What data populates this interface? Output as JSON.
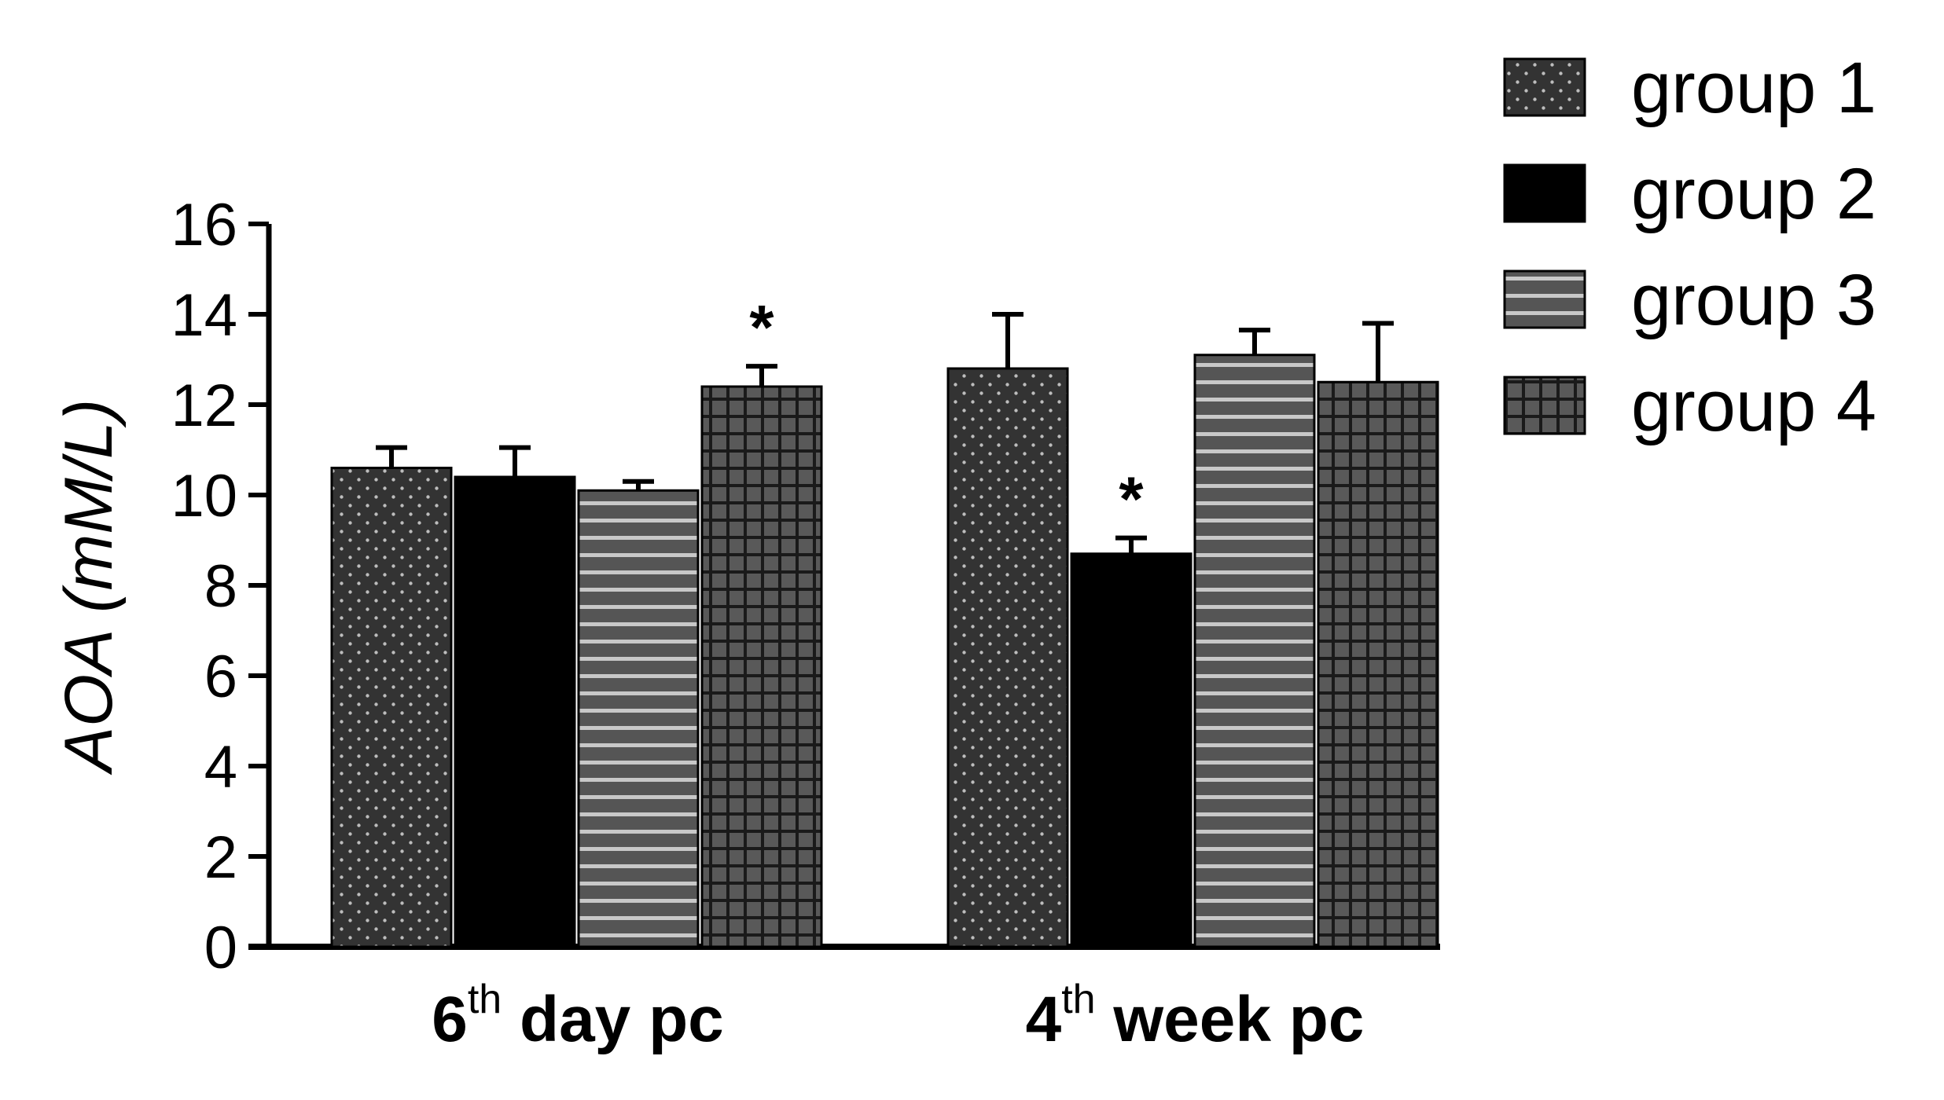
{
  "chart_data": {
    "type": "bar",
    "title": "",
    "xlabel": "",
    "ylabel": "AOA (mM/L)",
    "ylim": [
      0,
      16
    ],
    "yticks": [
      "0",
      "2",
      "4",
      "6",
      "8",
      "10",
      "12",
      "14",
      "16"
    ],
    "categories": [
      {
        "main": "6",
        "sup": "th",
        "rest": " day pc"
      },
      {
        "main": "4",
        "sup": "th",
        "rest": " week pc"
      }
    ],
    "series": [
      {
        "name": "group 1",
        "pattern": "dots",
        "values": [
          10.6,
          12.8
        ],
        "errors": [
          0.45,
          1.2
        ],
        "significant": [
          "",
          ""
        ]
      },
      {
        "name": "group 2",
        "pattern": "solid",
        "values": [
          10.4,
          8.7
        ],
        "errors": [
          0.65,
          0.35
        ],
        "significant": [
          "",
          "*"
        ]
      },
      {
        "name": "group 3",
        "pattern": "hstripes",
        "values": [
          10.1,
          13.1
        ],
        "errors": [
          0.2,
          0.55
        ],
        "significant": [
          "",
          ""
        ]
      },
      {
        "name": "group 4",
        "pattern": "grid",
        "values": [
          12.4,
          12.5
        ],
        "errors": [
          0.45,
          1.3
        ],
        "significant": [
          "*",
          ""
        ]
      }
    ],
    "legend_position": "top-right",
    "grid": false
  }
}
